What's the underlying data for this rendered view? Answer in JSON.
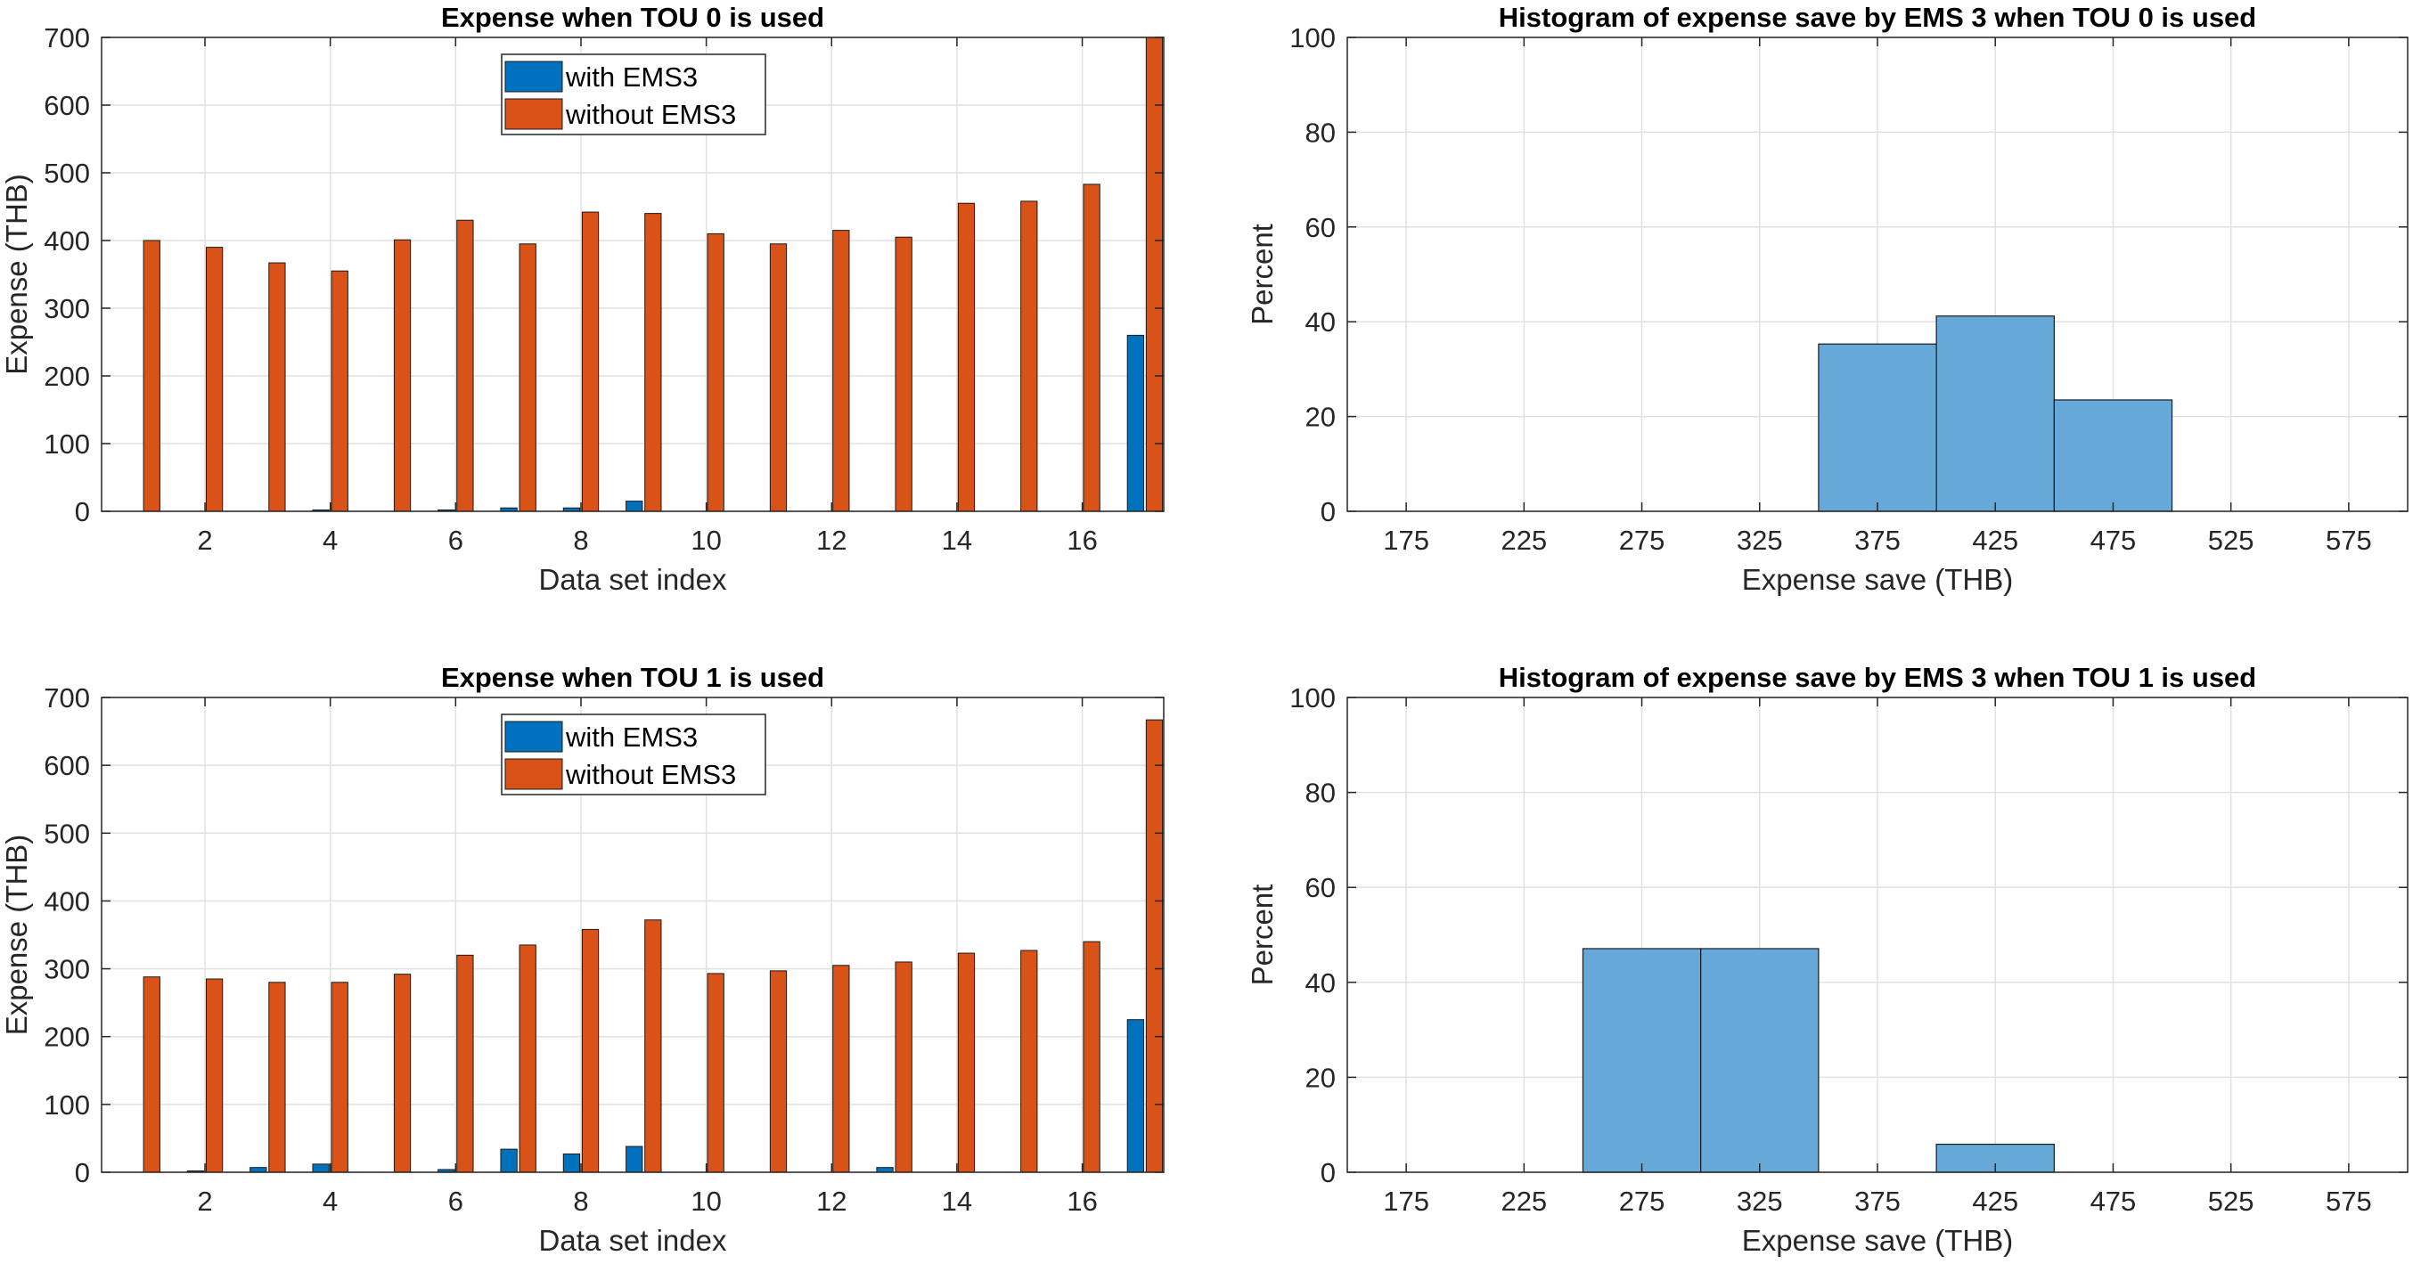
{
  "colors": {
    "with_ems": "#0072bd",
    "without_ems": "#d95319",
    "hist": "#66a9d8",
    "axis": "#262626",
    "grid": "#e1e1e1"
  },
  "chart_data": [
    {
      "type": "bar",
      "title": "Expense when TOU 0 is used",
      "xlabel": "Data set index",
      "ylabel": "Expense (THB)",
      "categories": [
        1,
        2,
        3,
        4,
        5,
        6,
        7,
        8,
        9,
        10,
        11,
        12,
        13,
        14,
        15,
        16,
        17
      ],
      "xticks": [
        "2",
        "4",
        "6",
        "8",
        "10",
        "12",
        "14",
        "16"
      ],
      "xtick_values": [
        2,
        4,
        6,
        8,
        10,
        12,
        14,
        16
      ],
      "yticks": [
        "0",
        "100",
        "200",
        "300",
        "400",
        "500",
        "600",
        "700"
      ],
      "ylim": [
        0,
        700
      ],
      "xlim": [
        0.35,
        17.3
      ],
      "grid": true,
      "legend_position": "top-center",
      "series": [
        {
          "name": "with EMS3",
          "values": [
            0,
            0,
            0,
            2,
            0,
            2,
            5,
            5,
            15,
            0,
            0,
            0,
            0,
            0,
            0,
            0,
            260
          ]
        },
        {
          "name": "without EMS3",
          "values": [
            400,
            390,
            367,
            355,
            401,
            430,
            395,
            442,
            440,
            410,
            395,
            415,
            405,
            455,
            458,
            483,
            700
          ]
        }
      ]
    },
    {
      "type": "bar",
      "title": "Histogram of expense save by EMS 3 when TOU 0 is used",
      "xlabel": "Expense save (THB)",
      "ylabel": "Percent",
      "bin_edges": [
        150,
        200,
        250,
        300,
        350,
        400,
        450,
        500,
        550,
        600
      ],
      "values": [
        0,
        0,
        0,
        0,
        35.3,
        41.2,
        23.5,
        0,
        0
      ],
      "xticks": [
        "175",
        "225",
        "275",
        "325",
        "375",
        "425",
        "475",
        "525",
        "575"
      ],
      "xtick_values": [
        175,
        225,
        275,
        325,
        375,
        425,
        475,
        525,
        575
      ],
      "yticks": [
        "0",
        "20",
        "40",
        "60",
        "80",
        "100"
      ],
      "ylim": [
        0,
        100
      ],
      "xlim": [
        150,
        600
      ],
      "grid": true
    },
    {
      "type": "bar",
      "title": "Expense when TOU 1 is used",
      "xlabel": "Data set index",
      "ylabel": "Expense (THB)",
      "categories": [
        1,
        2,
        3,
        4,
        5,
        6,
        7,
        8,
        9,
        10,
        11,
        12,
        13,
        14,
        15,
        16,
        17
      ],
      "xticks": [
        "2",
        "4",
        "6",
        "8",
        "10",
        "12",
        "14",
        "16"
      ],
      "xtick_values": [
        2,
        4,
        6,
        8,
        10,
        12,
        14,
        16
      ],
      "yticks": [
        "0",
        "100",
        "200",
        "300",
        "400",
        "500",
        "600",
        "700"
      ],
      "ylim": [
        0,
        700
      ],
      "xlim": [
        0.35,
        17.3
      ],
      "grid": true,
      "legend_position": "top-center",
      "series": [
        {
          "name": "with EMS3",
          "values": [
            0,
            2,
            7,
            12,
            0,
            4,
            34,
            27,
            38,
            0,
            0,
            0,
            7,
            0,
            0,
            0,
            225
          ]
        },
        {
          "name": "without EMS3",
          "values": [
            288,
            285,
            280,
            280,
            292,
            320,
            335,
            358,
            372,
            293,
            297,
            305,
            310,
            323,
            327,
            340,
            667
          ]
        }
      ]
    },
    {
      "type": "bar",
      "title": "Histogram of expense save by EMS 3 when TOU 1 is used",
      "xlabel": "Expense save (THB)",
      "ylabel": "Percent",
      "bin_edges": [
        150,
        200,
        250,
        300,
        350,
        400,
        450,
        500,
        550,
        600
      ],
      "values": [
        0,
        0,
        47.1,
        47.1,
        0,
        5.9,
        0,
        0,
        0
      ],
      "xticks": [
        "175",
        "225",
        "275",
        "325",
        "375",
        "425",
        "475",
        "525",
        "575"
      ],
      "xtick_values": [
        175,
        225,
        275,
        325,
        375,
        425,
        475,
        525,
        575
      ],
      "yticks": [
        "0",
        "20",
        "40",
        "60",
        "80",
        "100"
      ],
      "ylim": [
        0,
        100
      ],
      "xlim": [
        150,
        600
      ],
      "grid": true
    }
  ]
}
